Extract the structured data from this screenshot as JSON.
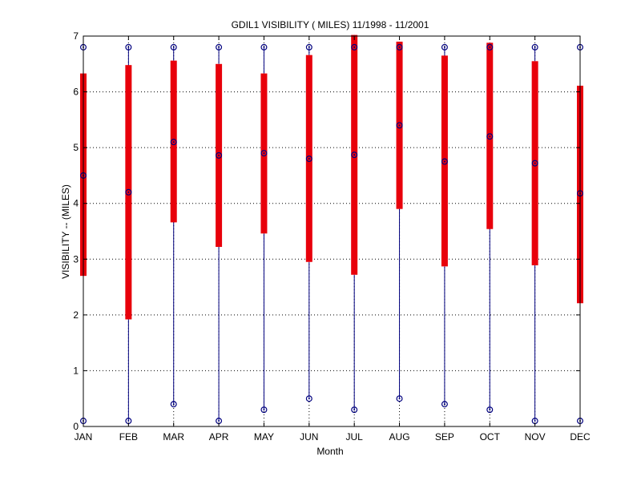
{
  "chart_data": {
    "type": "box",
    "title": "GDIL1  VISIBILITY ( MILES) 11/1998 - 11/2001",
    "xlabel": "Month",
    "ylabel": "VISIBILITY -- (MILES)",
    "ylim": [
      0,
      7
    ],
    "yticks": [
      0,
      1,
      2,
      3,
      4,
      5,
      6,
      7
    ],
    "grid": "dotted",
    "categories": [
      "JAN",
      "FEB",
      "MAR",
      "APR",
      "MAY",
      "JUN",
      "JUL",
      "AUG",
      "SEP",
      "OCT",
      "NOV",
      "DEC"
    ],
    "series": [
      {
        "min": [
          0.1,
          0.1,
          0.4,
          0.1,
          0.3,
          0.5,
          0.3,
          0.5,
          0.4,
          0.3,
          0.1,
          0.1
        ],
        "q1": [
          2.7,
          1.92,
          3.66,
          3.22,
          3.46,
          2.95,
          2.72,
          3.9,
          2.87,
          3.54,
          2.89,
          2.21
        ],
        "median": [
          4.5,
          4.2,
          5.1,
          4.86,
          4.9,
          4.8,
          4.87,
          5.4,
          4.75,
          5.2,
          4.72,
          4.18
        ],
        "q3": [
          6.33,
          6.48,
          6.56,
          6.5,
          6.33,
          6.66,
          7.02,
          6.9,
          6.65,
          6.88,
          6.55,
          6.11
        ],
        "max": [
          6.8,
          6.8,
          6.8,
          6.8,
          6.8,
          6.8,
          6.8,
          6.8,
          6.8,
          6.8,
          6.8,
          6.8
        ]
      }
    ],
    "colors": {
      "box": "#e8000b",
      "whisker": "#00007f",
      "marker": "#00007f",
      "axis": "#000000",
      "grid": "#000000"
    }
  }
}
